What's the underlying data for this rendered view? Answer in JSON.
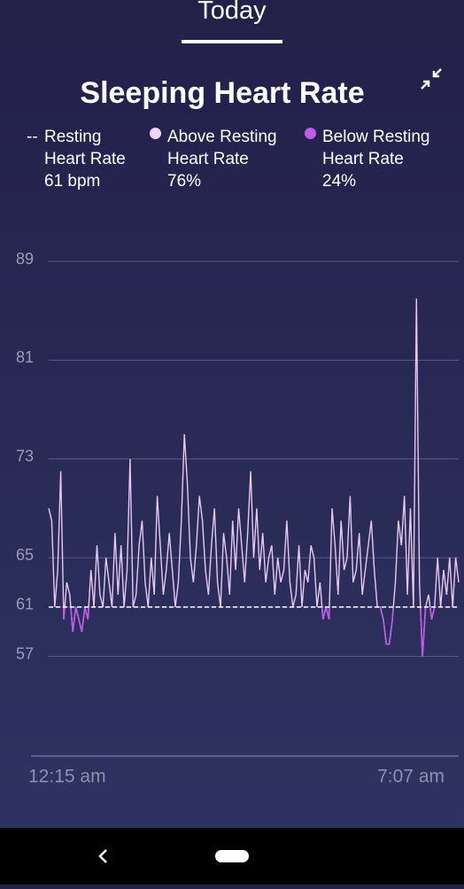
{
  "header": {
    "tab": "Today"
  },
  "chart_data": {
    "type": "line",
    "title": "Sleeping Heart Rate",
    "legend": [
      {
        "marker": "--",
        "name": "Resting Heart Rate",
        "value": 61,
        "value_label": "61 bpm"
      },
      {
        "name": "Above Resting Heart Rate",
        "value": 76,
        "value_label": "76%",
        "color": "#f0d4f5"
      },
      {
        "name": "Below Resting Heart Rate",
        "value": 24,
        "value_label": "24%",
        "color": "#c05ae8"
      }
    ],
    "resting": 61,
    "x_labels": [
      "12:15 am",
      "7:07 am"
    ],
    "ylim": [
      49,
      89
    ],
    "yticks": [
      57,
      61,
      65,
      73,
      81,
      89
    ],
    "grid": true,
    "series": [
      {
        "name": "Heart Rate",
        "color": "#e8c8f0",
        "values": [
          69,
          68,
          61,
          64,
          72,
          60,
          63,
          62,
          59,
          61,
          60,
          59,
          61,
          60,
          64,
          61,
          66,
          62,
          61,
          65,
          63,
          61,
          67,
          62,
          66,
          61,
          64,
          73,
          61,
          62,
          66,
          68,
          63,
          61,
          65,
          62,
          70,
          66,
          62,
          64,
          67,
          64,
          61,
          63,
          68,
          75,
          71,
          65,
          63,
          66,
          70,
          68,
          64,
          62,
          66,
          69,
          63,
          61,
          67,
          65,
          62,
          68,
          64,
          69,
          66,
          63,
          67,
          72,
          65,
          69,
          64,
          67,
          63,
          65,
          66,
          62,
          65,
          63,
          64,
          68,
          63,
          61,
          62,
          66,
          61,
          64,
          63,
          66,
          65,
          61,
          63,
          60,
          61,
          60,
          69,
          66,
          62,
          68,
          64,
          65,
          70,
          63,
          64,
          67,
          62,
          64,
          66,
          68,
          64,
          61,
          61,
          60,
          58,
          58,
          60,
          63,
          68,
          66,
          70,
          62,
          69,
          61,
          86,
          63,
          57,
          61,
          62,
          60,
          61,
          65,
          61,
          64,
          62,
          65,
          61,
          65,
          63
        ]
      }
    ]
  }
}
